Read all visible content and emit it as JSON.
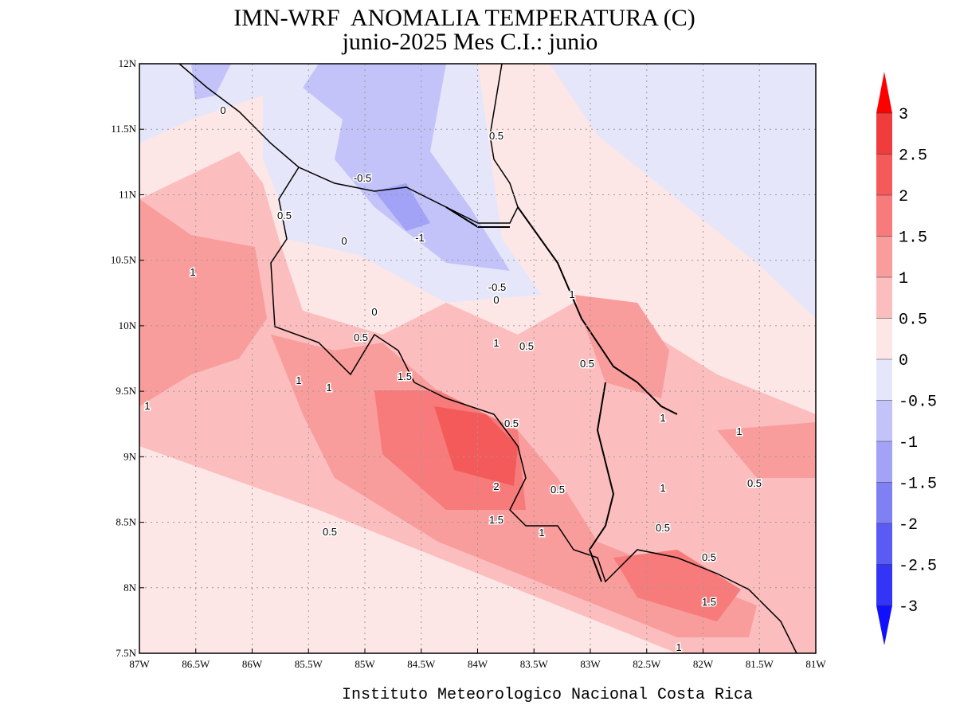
{
  "title": "IMN-WRF  ANOMALIA TEMPERATURA (C)",
  "subtitle": "junio-2025 Mes C.I.: junio",
  "footer": "Instituto Meteorologico Nacional Costa Rica",
  "map": {
    "xlim": [
      -87,
      -81
    ],
    "ylim": [
      7.5,
      12
    ],
    "xticks": [
      {
        "value": -87,
        "label": "87W"
      },
      {
        "value": -86.5,
        "label": "86.5W"
      },
      {
        "value": -86,
        "label": "86W"
      },
      {
        "value": -85.5,
        "label": "85.5W"
      },
      {
        "value": -85,
        "label": "85W"
      },
      {
        "value": -84.5,
        "label": "84.5W"
      },
      {
        "value": -84,
        "label": "84W"
      },
      {
        "value": -83.5,
        "label": "83.5W"
      },
      {
        "value": -83,
        "label": "83W"
      },
      {
        "value": -82.5,
        "label": "82.5W"
      },
      {
        "value": -82,
        "label": "82W"
      },
      {
        "value": -81.5,
        "label": "81.5W"
      },
      {
        "value": -81,
        "label": "81W"
      }
    ],
    "yticks": [
      {
        "value": 7.5,
        "label": "7.5N"
      },
      {
        "value": 8,
        "label": "8N"
      },
      {
        "value": 8.5,
        "label": "8.5N"
      },
      {
        "value": 9,
        "label": "9N"
      },
      {
        "value": 9.5,
        "label": "9.5N"
      },
      {
        "value": 10,
        "label": "10N"
      },
      {
        "value": 10.5,
        "label": "10.5N"
      },
      {
        "value": 11,
        "label": "11N"
      },
      {
        "value": 11.5,
        "label": "11.5N"
      },
      {
        "value": 12,
        "label": "12N"
      }
    ],
    "contour_labels": [
      0,
      -0.5,
      0.5,
      0.5,
      0,
      -1,
      1,
      -0.5,
      0,
      1,
      0,
      0.5,
      1,
      0.5,
      0.5,
      1.5,
      1,
      1,
      1,
      0.5,
      1,
      1,
      2,
      0.5,
      0.5,
      1,
      1.5,
      1,
      0.5,
      0.5,
      0.5,
      1.5,
      1
    ]
  },
  "colorbar": {
    "ticks": [
      -3,
      -2.5,
      -2,
      -1.5,
      -1,
      -0.5,
      0,
      0.5,
      1,
      1.5,
      2,
      2.5,
      3
    ],
    "colors": [
      "#1010ff",
      "#3434f6",
      "#5a5af5",
      "#8080f5",
      "#a2a2f7",
      "#c3c3f9",
      "#e6e6fb",
      "#fde6e6",
      "#fbbdbd",
      "#f99c9c",
      "#f77b7b",
      "#f55a5a",
      "#f03c3c",
      "#ff0000"
    ]
  }
}
